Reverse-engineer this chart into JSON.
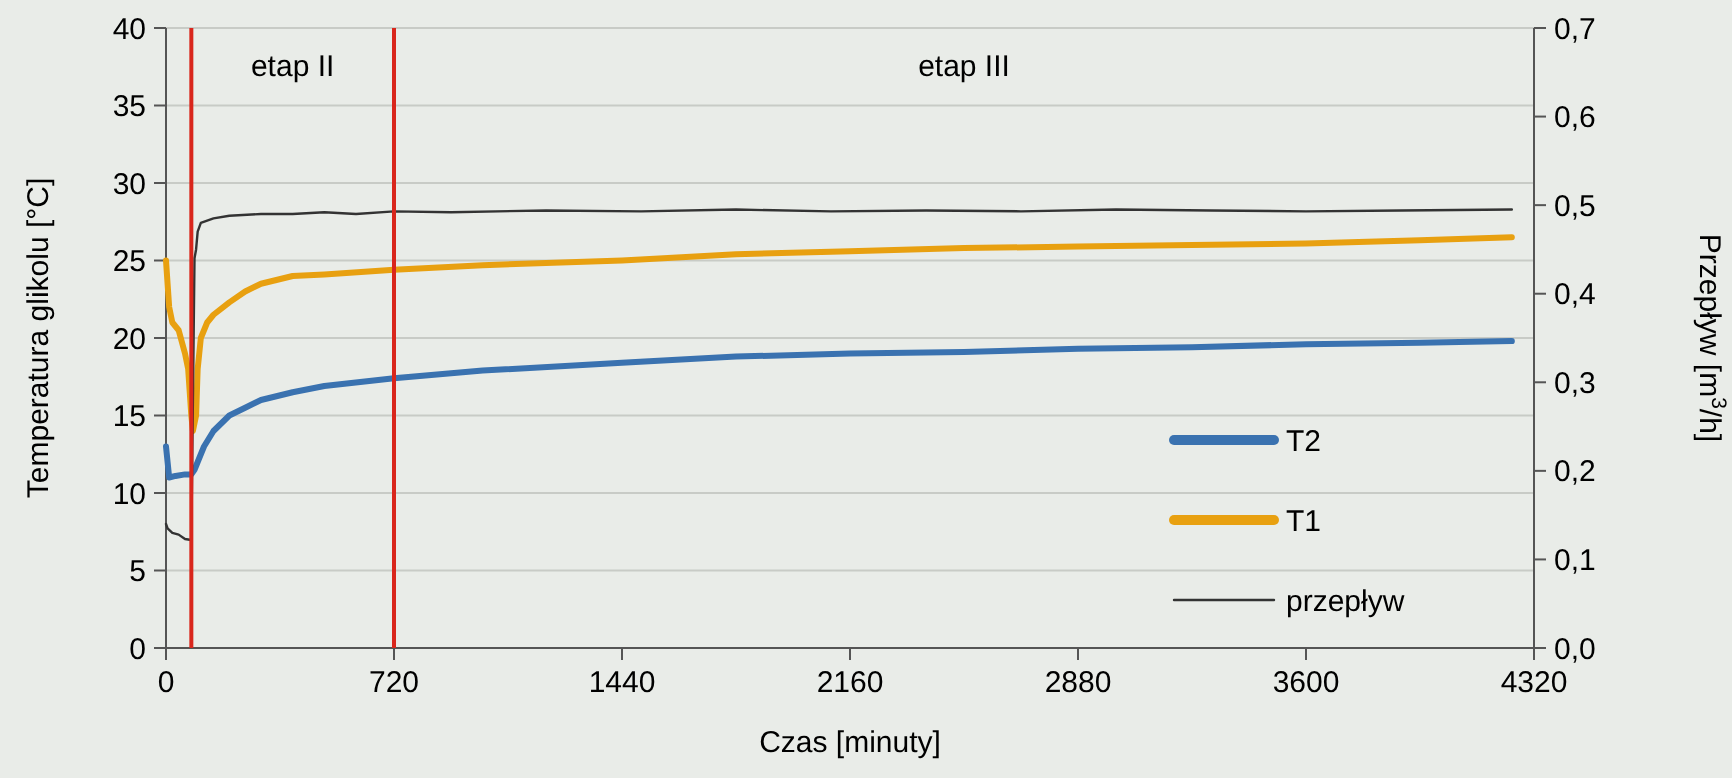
{
  "chart_data": {
    "type": "line",
    "xlabel": "Czas [minuty]",
    "ylabel": "Temperatura glikolu [°C]",
    "y2label": "Przepływ [m$^{3}$/h]",
    "xlim": [
      0,
      4320
    ],
    "xticks": [
      0,
      720,
      1440,
      2160,
      2880,
      3600,
      4320
    ],
    "ylim": [
      0,
      40
    ],
    "yticks": [
      0,
      5,
      10,
      15,
      20,
      25,
      30,
      35,
      40
    ],
    "y2lim": [
      0,
      0.7
    ],
    "y2ticks": [
      {
        "value": 0,
        "label": "0,0"
      },
      {
        "value": 0.1,
        "label": "0,1"
      },
      {
        "value": 0.2,
        "label": "0,2"
      },
      {
        "value": 0.3,
        "label": "0,3"
      },
      {
        "value": 0.4,
        "label": "0,4"
      },
      {
        "value": 0.5,
        "label": "0,5"
      },
      {
        "value": 0.6,
        "label": "0,6"
      },
      {
        "value": 0.7,
        "label": "0,7"
      }
    ],
    "grid": "y",
    "legend": "bottom right",
    "line_style": "solid",
    "marker": "none",
    "ref_lines": [
      {
        "axis": "x",
        "value": 80,
        "color": "#d9261c"
      },
      {
        "axis": "x",
        "value": 720,
        "color": "#d9261c"
      }
    ],
    "annotations": [
      "etap II",
      "etap III"
    ],
    "series": [
      {
        "name": "T2",
        "color": "#3a72b0",
        "x": [
          0,
          5,
          10,
          30,
          60,
          80,
          90,
          100,
          120,
          150,
          200,
          250,
          300,
          400,
          500,
          720,
          1000,
          1440,
          1800,
          2160,
          2520,
          2880,
          3240,
          3600,
          3960,
          4250
        ],
        "values": [
          13,
          12,
          11,
          11.1,
          11.2,
          11.2,
          11.5,
          12,
          13,
          14,
          15,
          15.5,
          16,
          16.5,
          16.9,
          17.4,
          17.9,
          18.4,
          18.8,
          19,
          19.1,
          19.3,
          19.4,
          19.6,
          19.7,
          19.8
        ]
      },
      {
        "name": "T1",
        "color": "#e8a010",
        "x": [
          0,
          10,
          20,
          40,
          60,
          70,
          80,
          85,
          90,
          95,
          100,
          110,
          130,
          150,
          200,
          250,
          300,
          400,
          500,
          720,
          1000,
          1440,
          1800,
          2160,
          2520,
          2880,
          3240,
          3600,
          3960,
          4250
        ],
        "values": [
          25,
          22,
          21,
          20.5,
          19,
          18,
          15,
          14,
          14.5,
          15,
          18,
          20,
          21,
          21.5,
          22.3,
          23,
          23.5,
          24,
          24.1,
          24.4,
          24.7,
          25,
          25.4,
          25.6,
          25.8,
          25.9,
          26,
          26.1,
          26.3,
          26.5
        ]
      },
      {
        "name": "przepływ",
        "color": "#333333",
        "axis": "y2",
        "x": [
          0,
          5,
          20,
          40,
          60,
          80,
          90,
          95,
          100,
          110,
          150,
          200,
          300,
          400,
          500,
          600,
          720,
          900,
          1200,
          1500,
          1800,
          2100,
          2400,
          2700,
          3000,
          3300,
          3600,
          3900,
          4250
        ],
        "values": [
          0.14,
          0.135,
          0.13,
          0.128,
          0.123,
          0.122,
          0.44,
          0.45,
          0.47,
          0.48,
          0.485,
          0.488,
          0.49,
          0.49,
          0.492,
          0.49,
          0.493,
          0.492,
          0.494,
          0.493,
          0.495,
          0.493,
          0.494,
          0.493,
          0.495,
          0.494,
          0.493,
          0.494,
          0.495
        ]
      }
    ]
  }
}
